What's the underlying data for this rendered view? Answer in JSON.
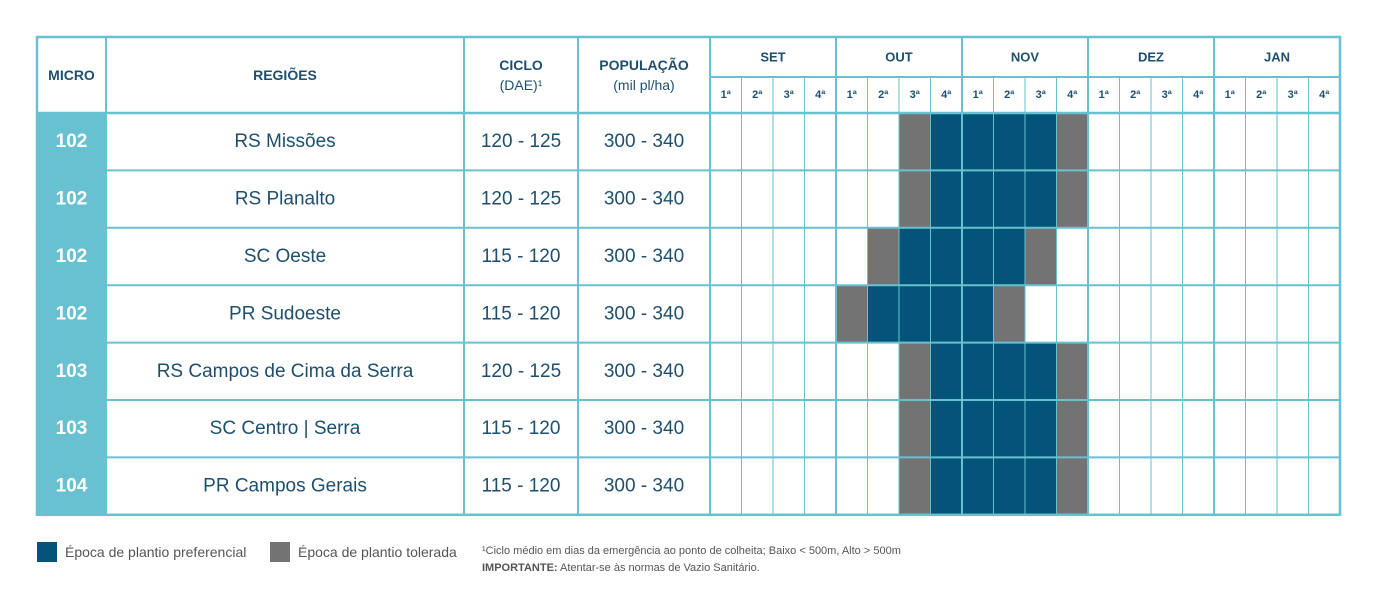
{
  "colors": {
    "border": "#67c1d0",
    "header_text": "#1d4f6e",
    "body_text": "#1d4f6e",
    "micro_bg": "#67c1d0",
    "micro_text": "#ffffff",
    "preferred": "#045479",
    "tolerated": "#737373"
  },
  "headers": {
    "micro": "MICRO",
    "regioes": "REGIÕES",
    "ciclo_line1": "CICLO",
    "ciclo_line2": "(DAE)¹",
    "populacao_line1": "POPULAÇÃO",
    "populacao_line2": "(mil pl/ha)",
    "months": [
      "SET",
      "OUT",
      "NOV",
      "DEZ",
      "JAN"
    ],
    "weeks": [
      "1ª",
      "2ª",
      "3ª",
      "4ª"
    ]
  },
  "chart_data": {
    "type": "table",
    "title": "",
    "cell_codes": {
      "0": "empty",
      "1": "preferred",
      "2": "tolerated"
    },
    "rows": [
      {
        "micro": "102",
        "region": "RS Missões",
        "ciclo": "120 - 125",
        "populacao": "300 - 340",
        "weeks": [
          0,
          0,
          0,
          0,
          0,
          0,
          2,
          1,
          1,
          1,
          1,
          2,
          0,
          0,
          0,
          0,
          0,
          0,
          0,
          0
        ]
      },
      {
        "micro": "102",
        "region": "RS Planalto",
        "ciclo": "120 - 125",
        "populacao": "300 - 340",
        "weeks": [
          0,
          0,
          0,
          0,
          0,
          0,
          2,
          1,
          1,
          1,
          1,
          2,
          0,
          0,
          0,
          0,
          0,
          0,
          0,
          0
        ]
      },
      {
        "micro": "102",
        "region": "SC Oeste",
        "ciclo": "115 - 120",
        "populacao": "300 - 340",
        "weeks": [
          0,
          0,
          0,
          0,
          0,
          2,
          1,
          1,
          1,
          1,
          2,
          0,
          0,
          0,
          0,
          0,
          0,
          0,
          0,
          0
        ]
      },
      {
        "micro": "102",
        "region": "PR Sudoeste",
        "ciclo": "115 - 120",
        "populacao": "300 - 340",
        "weeks": [
          0,
          0,
          0,
          0,
          2,
          1,
          1,
          1,
          1,
          2,
          0,
          0,
          0,
          0,
          0,
          0,
          0,
          0,
          0,
          0
        ]
      },
      {
        "micro": "103",
        "region": "RS Campos de Cima da Serra",
        "ciclo": "120 - 125",
        "populacao": "300 - 340",
        "weeks": [
          0,
          0,
          0,
          0,
          0,
          0,
          2,
          1,
          1,
          1,
          1,
          2,
          0,
          0,
          0,
          0,
          0,
          0,
          0,
          0
        ]
      },
      {
        "micro": "103",
        "region": "SC Centro | Serra",
        "ciclo": "115 - 120",
        "populacao": "300 - 340",
        "weeks": [
          0,
          0,
          0,
          0,
          0,
          0,
          2,
          1,
          1,
          1,
          1,
          2,
          0,
          0,
          0,
          0,
          0,
          0,
          0,
          0
        ]
      },
      {
        "micro": "104",
        "region": "PR Campos Gerais",
        "ciclo": "115 - 120",
        "populacao": "300 - 340",
        "weeks": [
          0,
          0,
          0,
          0,
          0,
          0,
          2,
          1,
          1,
          1,
          1,
          2,
          0,
          0,
          0,
          0,
          0,
          0,
          0,
          0
        ]
      }
    ]
  },
  "legend": {
    "preferred_label": "Época de plantio preferencial",
    "tolerated_label": "Época de plantio tolerada"
  },
  "notes": {
    "footnote": "¹Ciclo médio em dias da emergência ao ponto de colheita; Baixo < 500m, Alto > 500m",
    "important_label": "IMPORTANTE:",
    "important_text": " Atentar-se às normas de Vazio Sanitário."
  }
}
